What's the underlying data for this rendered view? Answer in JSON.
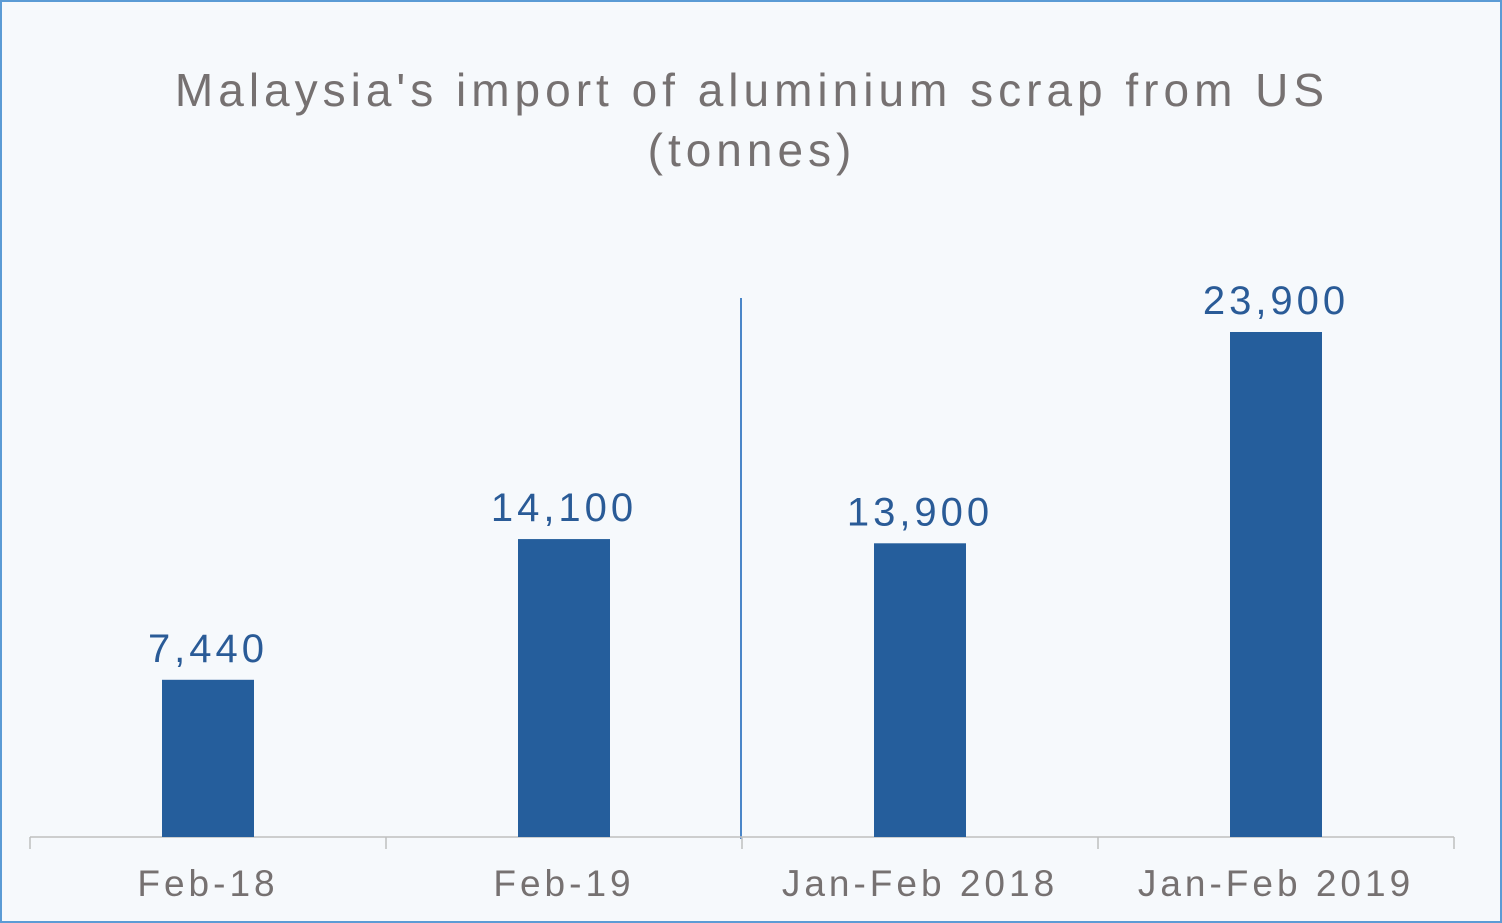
{
  "chart_data": {
    "type": "bar",
    "title": "Malaysia's import of aluminium scrap from US (tonnes)",
    "categories": [
      "Feb-18",
      "Feb-19",
      "Jan-Feb 2018",
      "Jan-Feb 2019"
    ],
    "values": [
      7440,
      14100,
      13900,
      23900
    ],
    "value_labels": [
      "7,440",
      "14,100",
      "13,900",
      "23,900"
    ],
    "color": "#255e9c"
  }
}
